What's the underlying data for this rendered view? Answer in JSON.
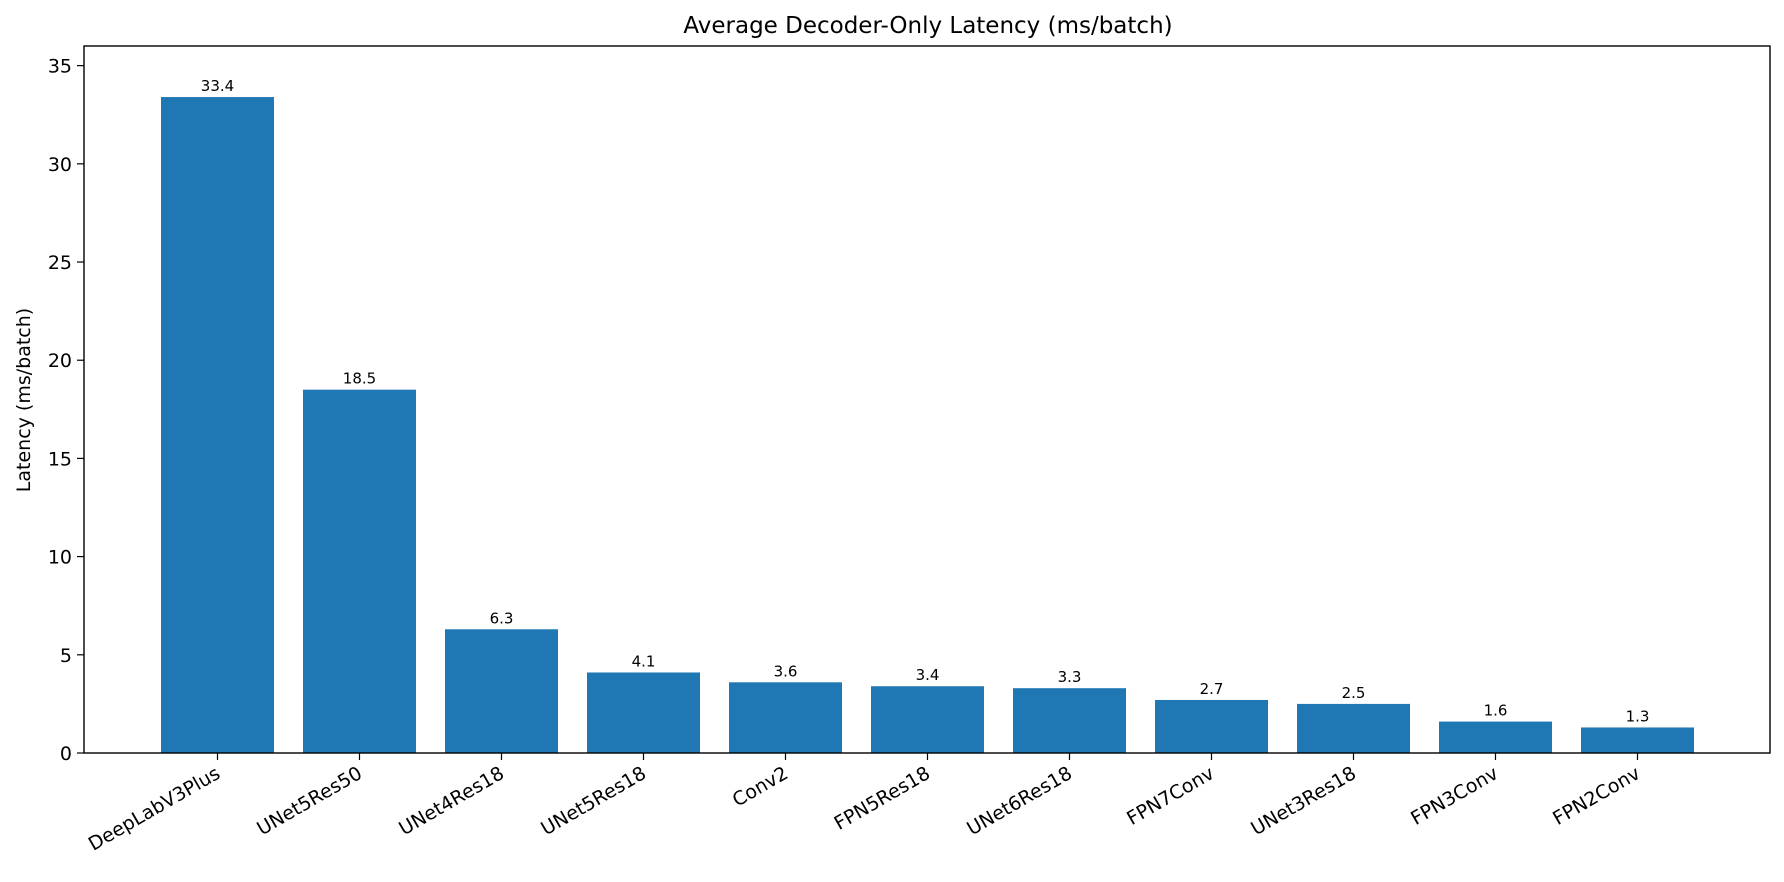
{
  "chart_data": {
    "type": "bar",
    "title": "Average Decoder-Only Latency (ms/batch)",
    "xlabel": "",
    "ylabel": "Latency (ms/batch)",
    "categories": [
      "DeepLabV3Plus",
      "UNet5Res50",
      "UNet4Res18",
      "UNet5Res18",
      "Conv2",
      "FPN5Res18",
      "UNet6Res18",
      "FPN7Conv",
      "UNet3Res18",
      "FPN3Conv",
      "FPN2Conv"
    ],
    "values": [
      33.4,
      18.5,
      6.3,
      4.1,
      3.6,
      3.4,
      3.3,
      2.7,
      2.5,
      1.6,
      1.3
    ],
    "data_labels": [
      "33.4",
      "18.5",
      "6.3",
      "4.1",
      "3.6",
      "3.4",
      "3.3",
      "2.7",
      "2.5",
      "1.6",
      "1.3"
    ],
    "ylim": [
      0,
      36
    ],
    "yticks": [
      0,
      5,
      10,
      15,
      20,
      25,
      30,
      35
    ],
    "grid": false,
    "bar_color": "#1f77b4"
  }
}
